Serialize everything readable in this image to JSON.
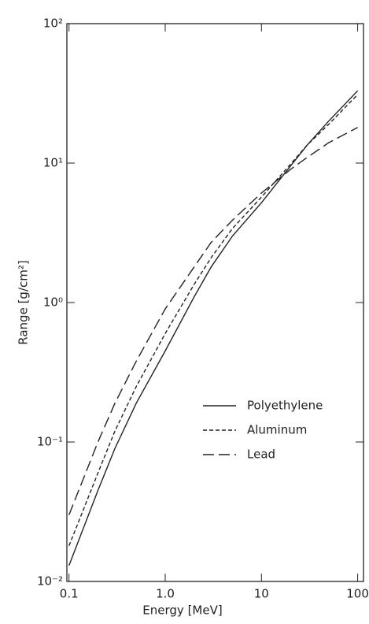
{
  "chart_data": {
    "type": "line",
    "x_label": "Energy [MeV]",
    "y_label": "Range [g/cm²]",
    "x": [
      0.1,
      0.2,
      0.3,
      0.5,
      1,
      2,
      3,
      5,
      10,
      20,
      30,
      50,
      100
    ],
    "series": [
      {
        "name": "Polyethylene",
        "color": "#222222",
        "dash": "solid",
        "values": [
          0.013,
          0.045,
          0.09,
          0.19,
          0.45,
          1.1,
          1.8,
          3.0,
          5.2,
          9.5,
          13.5,
          20,
          33
        ]
      },
      {
        "name": "Aluminum",
        "color": "#222222",
        "dash": "dashed",
        "values": [
          0.018,
          0.06,
          0.12,
          0.25,
          0.6,
          1.35,
          2.1,
          3.4,
          5.7,
          9.8,
          13.5,
          19,
          31
        ]
      },
      {
        "name": "Lead",
        "color": "#222222",
        "dash": "longdash",
        "values": [
          0.03,
          0.1,
          0.19,
          0.38,
          0.9,
          1.8,
          2.7,
          3.9,
          6.1,
          9.0,
          11,
          14,
          18
        ]
      }
    ],
    "xscale": "log",
    "yscale": "log",
    "xlim": [
      0.095,
      115
    ],
    "ylim": [
      0.01,
      100
    ],
    "xticks": [
      0.1,
      {
        "value": 1,
        "label": "1.0"
      },
      10,
      100
    ],
    "yticks": [
      {
        "value": 0.01,
        "label": "10⁻²"
      },
      {
        "value": 0.1,
        "label": "10⁻¹"
      },
      {
        "value": 1,
        "label": "10⁰"
      },
      {
        "value": 10,
        "label": "10¹"
      },
      {
        "value": 100,
        "label": "10²"
      }
    ],
    "legend": "center right"
  }
}
